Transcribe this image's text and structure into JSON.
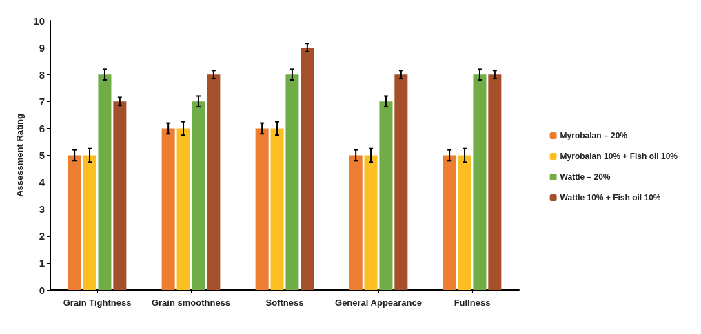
{
  "chart_data": {
    "type": "bar",
    "ylabel": "Assessment Rating",
    "categories": [
      "Grain Tightness",
      "Grain smoothness",
      "Softness",
      "General Appearance",
      "Fullness"
    ],
    "series": [
      {
        "name": "Myrobalan – 20%",
        "color": "#ed7d31",
        "values": [
          5,
          6,
          6,
          5,
          5
        ],
        "errors": [
          0.2,
          0.2,
          0.2,
          0.2,
          0.2
        ]
      },
      {
        "name": "Myrobalan 10% + Fish oil 10%",
        "color": "#fbbf24",
        "values": [
          5,
          6,
          6,
          5,
          5
        ],
        "errors": [
          0.25,
          0.25,
          0.25,
          0.25,
          0.25
        ]
      },
      {
        "name": "Wattle – 20%",
        "color": "#70ad47",
        "values": [
          8,
          7,
          8,
          7,
          8
        ],
        "errors": [
          0.2,
          0.2,
          0.2,
          0.2,
          0.2
        ]
      },
      {
        "name": "Wattle 10% + Fish oil 10%",
        "color": "#a5502a",
        "values": [
          7,
          8,
          9,
          8,
          8
        ],
        "errors": [
          0.15,
          0.15,
          0.15,
          0.15,
          0.15
        ]
      }
    ],
    "ylim": [
      0,
      10
    ],
    "yticks": [
      0,
      1,
      2,
      3,
      4,
      5,
      6,
      7,
      8,
      9,
      10
    ],
    "grid": false,
    "legend": "right"
  }
}
